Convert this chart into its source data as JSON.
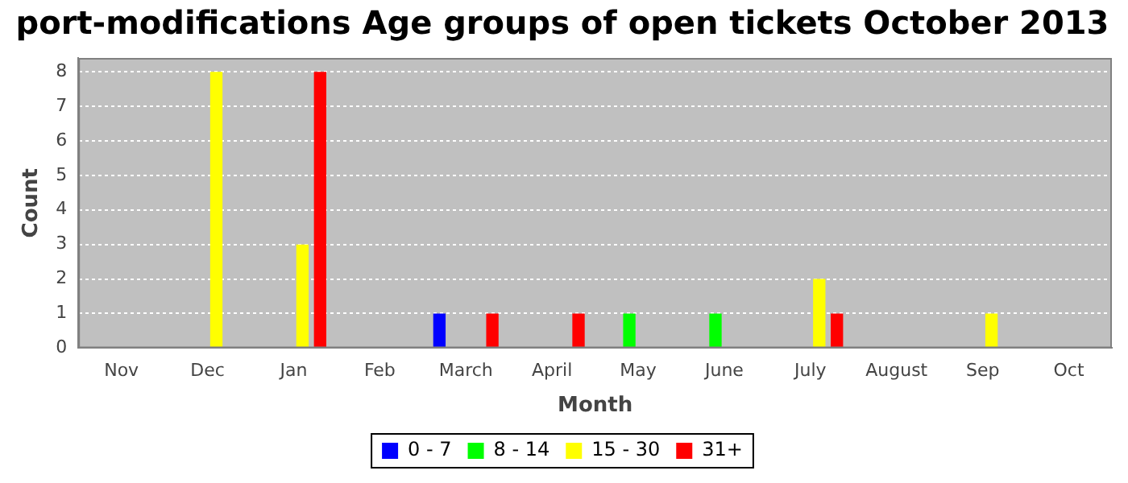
{
  "chart_data": {
    "type": "bar",
    "title": "port-modifications Age groups of open tickets October 2013",
    "xlabel": "Month",
    "ylabel": "Count",
    "categories": [
      "Nov",
      "Dec",
      "Jan",
      "Feb",
      "March",
      "April",
      "May",
      "June",
      "July",
      "August",
      "Sep",
      "Oct"
    ],
    "series": [
      {
        "name": "0 - 7",
        "color": "#0000ff",
        "values": [
          0,
          0,
          0,
          0,
          1,
          0,
          0,
          0,
          0,
          0,
          0,
          0
        ]
      },
      {
        "name": "8 - 14",
        "color": "#00ff00",
        "values": [
          0,
          0,
          0,
          0,
          0,
          0,
          1,
          1,
          0,
          0,
          0,
          0
        ]
      },
      {
        "name": "15 - 30",
        "color": "#ffff00",
        "values": [
          0,
          8,
          3,
          0,
          0,
          0,
          0,
          0,
          2,
          0,
          1,
          0
        ]
      },
      {
        "name": "31+",
        "color": "#ff0000",
        "values": [
          0,
          0,
          8,
          0,
          1,
          1,
          0,
          0,
          1,
          0,
          0,
          0
        ]
      }
    ],
    "ylim": [
      0,
      8.4
    ],
    "yticks": [
      0,
      1,
      2,
      3,
      4,
      5,
      6,
      7,
      8
    ],
    "grid": "y",
    "legend": "bottom"
  }
}
